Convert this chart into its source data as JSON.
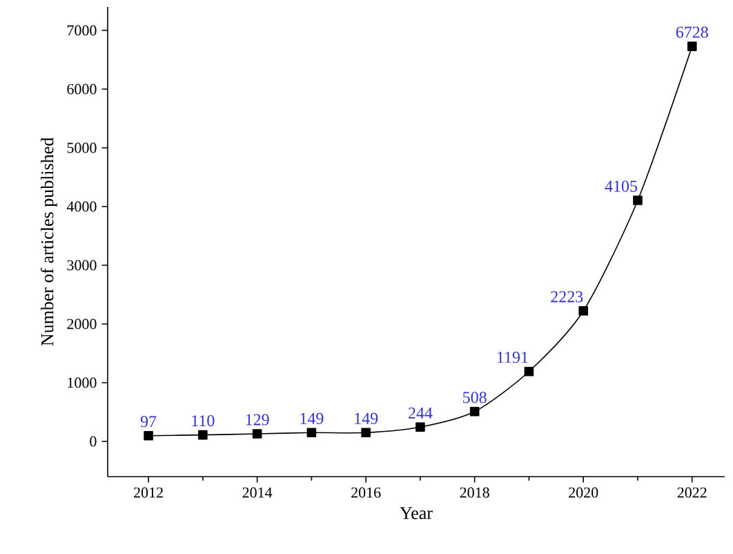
{
  "chart_data": {
    "type": "line",
    "xlabel": "Year",
    "ylabel": "Number of articles published",
    "x": [
      2012,
      2013,
      2014,
      2015,
      2016,
      2017,
      2018,
      2019,
      2020,
      2021,
      2022
    ],
    "values": [
      97,
      110,
      129,
      149,
      149,
      244,
      508,
      1191,
      2223,
      4105,
      6728
    ],
    "color": "#000000",
    "marker": "square",
    "line_style": "solid",
    "data_labels": true,
    "xlim": [
      2011.25,
      2022.6
    ],
    "ylim": [
      -600,
      7400
    ],
    "xticks": [
      2012,
      2014,
      2016,
      2018,
      2020,
      2022
    ],
    "yticks": [
      0,
      1000,
      2000,
      3000,
      4000,
      5000,
      6000,
      7000
    ],
    "grid": false
  }
}
